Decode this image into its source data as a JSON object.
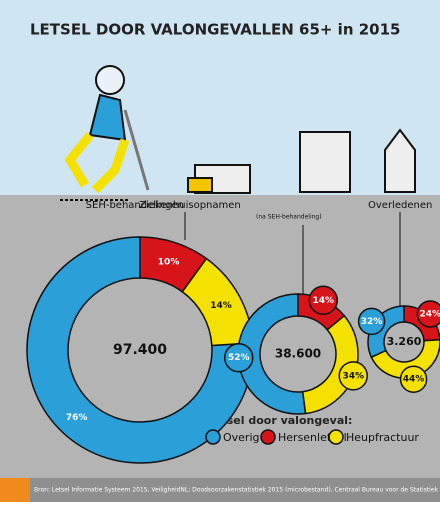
{
  "title": "LETSEL DOOR VALONGEVALLEN 65+ in 2015",
  "chart_data": [
    {
      "type": "donut",
      "title": "SEH-behandelingen",
      "center_label": "97.400",
      "categories": [
        "Overig",
        "Hersenletsel",
        "Heupfractuur"
      ],
      "values": [
        76,
        10,
        14
      ],
      "value_labels": [
        "76%",
        "10%",
        "14%"
      ],
      "colors": [
        "#2a9fd8",
        "#d7141a",
        "#f5e100"
      ]
    },
    {
      "type": "donut",
      "title": "Ziekenhuisopnamen",
      "subtitle": "(na SEH-behandeling)",
      "center_label": "38.600",
      "categories": [
        "Overig",
        "Hersenletsel",
        "Heupfractuur"
      ],
      "values": [
        52,
        14,
        34
      ],
      "value_labels": [
        "52%",
        "14%",
        "34%"
      ],
      "colors": [
        "#2a9fd8",
        "#d7141a",
        "#f5e100"
      ]
    },
    {
      "type": "donut",
      "title": "Overledenen",
      "center_label": "3.260",
      "categories": [
        "Overig",
        "Hersenletsel",
        "Heupfractuur"
      ],
      "values": [
        32,
        24,
        44
      ],
      "value_labels": [
        "32%",
        "24%",
        "44%"
      ],
      "colors": [
        "#2a9fd8",
        "#d7141a",
        "#f5e100"
      ]
    }
  ],
  "legend_title": "Letsel door valongeval:",
  "source": "Bron: Letsel Informatie Systeem 2015, VeiligheidNL; Doodsoorzakenstatistiek 2015 (microbestand), Centraal Bureau voor de Statistiek"
}
